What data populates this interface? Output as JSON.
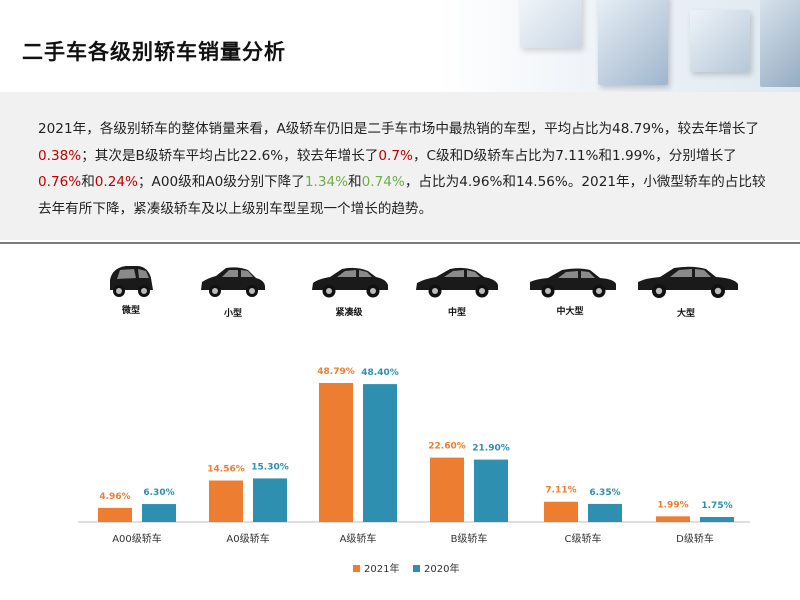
{
  "header": {
    "title": "二手车各级别轿车销量分析"
  },
  "summary": {
    "s1": "2021年，各级别轿车的整体销量来看，A级轿车仍旧是二手车市场中最热销的车型，平均占比为48.79%，较去年增长了",
    "v1": "0.38%",
    "s2": "；其次是B级轿车平均占比22.6%，较去年增长了",
    "v2": "0.7%",
    "s3": "，C级和D级轿车占比为7.11%和1.99%，分别增长了",
    "v3": "0.76%",
    "s4": "和",
    "v4": "0.24%",
    "s5": "；A00级和A0级分别下降了",
    "v5": "1.34%",
    "s6": "和",
    "v6": "0.74%",
    "s7": "，占比为4.96%和14.56%。2021年，小微型轿车的占比较去年有所下降，紧凑级轿车及以上级别车型呈现一个增长的趋势。",
    "colors": {
      "increase": "#c00000",
      "decrease": "#70ad47"
    }
  },
  "car_types": [
    {
      "label": "微型",
      "icon": "micro-car-icon"
    },
    {
      "label": "小型",
      "icon": "small-car-icon"
    },
    {
      "label": "紧凑级",
      "icon": "compact-car-icon"
    },
    {
      "label": "中型",
      "icon": "midsize-car-icon"
    },
    {
      "label": "中大型",
      "icon": "large-midsize-car-icon"
    },
    {
      "label": "大型",
      "icon": "large-car-icon"
    }
  ],
  "chart_data": {
    "type": "bar",
    "categories": [
      "A00级轿车",
      "A0级轿车",
      "A级轿车",
      "B级轿车",
      "C级轿车",
      "D级轿车"
    ],
    "series": [
      {
        "name": "2021年",
        "values": [
          4.96,
          14.56,
          48.79,
          22.6,
          7.11,
          1.99
        ],
        "labels": [
          "4.96%",
          "14.56%",
          "48.79%",
          "22.60%",
          "7.11%",
          "1.99%"
        ],
        "color": "#ed7d31"
      },
      {
        "name": "2020年",
        "values": [
          6.3,
          15.3,
          48.4,
          21.9,
          6.35,
          1.75
        ],
        "labels": [
          "6.30%",
          "15.30%",
          "48.40%",
          "21.90%",
          "6.35%",
          "1.75%"
        ],
        "color": "#2e8fb0"
      }
    ],
    "ylim": [
      0,
      50
    ],
    "grid": false,
    "legend": "bottom"
  }
}
